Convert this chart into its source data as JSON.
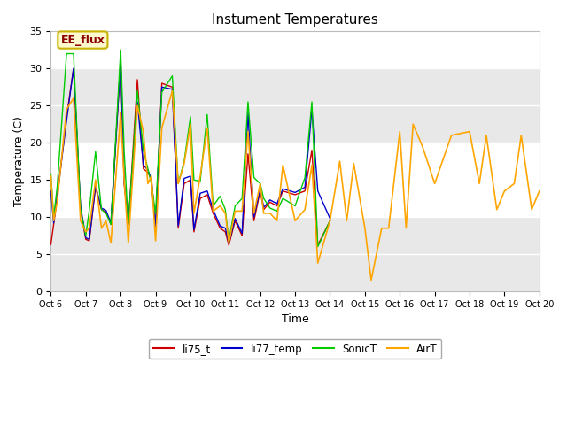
{
  "title": "Instument Temperatures",
  "xlabel": "Time",
  "ylabel": "Temperature (C)",
  "ylim": [
    0,
    35
  ],
  "xlim": [
    0,
    14
  ],
  "xtick_labels": [
    "Oct 6",
    "Oct 7",
    "Oct 8",
    "Oct 9",
    "Oct 10",
    "Oct 11",
    "Oct 12",
    "Oct 13",
    "Oct 14",
    "Oct 15",
    "Oct 16",
    "Oct 17",
    "Oct 18",
    "Oct 19",
    "Oct 20"
  ],
  "annotation_text": "EE_flux",
  "annotation_color": "#8B0000",
  "annotation_bg": "#FFFACD",
  "annotation_border": "#C8B400",
  "fig_bg": "#FFFFFF",
  "plot_bg": "#FFFFFF",
  "band_color": "#E8E8E8",
  "series_colors": {
    "li75_t": "#CC0000",
    "li77_temp": "#0000CC",
    "SonicT": "#00CC00",
    "AirT": "#FFA500"
  },
  "x_indices": [
    0,
    0.08,
    0.18,
    0.45,
    0.65,
    0.85,
    1.0,
    1.1,
    1.28,
    1.45,
    1.58,
    1.72,
    2.0,
    2.1,
    2.22,
    2.48,
    2.65,
    2.78,
    2.88,
    3.0,
    3.18,
    3.48,
    3.65,
    3.82,
    4.0,
    4.1,
    4.28,
    4.48,
    4.65,
    4.85,
    5.0,
    5.1,
    5.28,
    5.48,
    5.65,
    5.82,
    6.0,
    6.1,
    6.28,
    6.48,
    6.65,
    7.0,
    7.28,
    7.48,
    7.65,
    8.0
  ],
  "li75_t": [
    6.3,
    9.0,
    12.5,
    23.5,
    30.0,
    11.0,
    7.0,
    6.8,
    14.0,
    11.0,
    10.7,
    9.0,
    31.0,
    14.5,
    9.0,
    28.5,
    16.5,
    16.0,
    15.0,
    8.5,
    28.0,
    27.5,
    8.5,
    14.5,
    15.0,
    8.0,
    12.5,
    13.0,
    10.5,
    8.5,
    8.0,
    6.2,
    9.5,
    7.5,
    18.5,
    9.5,
    13.5,
    11.0,
    12.0,
    11.5,
    13.5,
    13.0,
    13.5,
    19.0,
    6.2,
    9.5
  ],
  "li77_temp": [
    13.5,
    9.2,
    12.8,
    23.0,
    30.0,
    11.5,
    7.2,
    7.0,
    14.2,
    11.2,
    10.9,
    9.2,
    31.0,
    14.8,
    9.2,
    25.5,
    17.0,
    16.3,
    15.2,
    8.8,
    27.5,
    27.2,
    8.8,
    15.2,
    15.5,
    8.3,
    13.2,
    13.5,
    11.0,
    8.8,
    8.5,
    6.5,
    9.8,
    7.8,
    24.0,
    10.0,
    13.8,
    11.3,
    12.3,
    11.8,
    13.8,
    13.3,
    14.0,
    24.5,
    13.5,
    9.8
  ],
  "SonicT": [
    15.8,
    10.0,
    14.0,
    32.0,
    32.0,
    11.0,
    7.5,
    10.9,
    18.8,
    11.0,
    10.5,
    9.0,
    32.5,
    18.8,
    9.0,
    27.0,
    19.0,
    16.5,
    14.5,
    10.5,
    26.8,
    29.0,
    14.5,
    17.5,
    23.5,
    15.0,
    14.8,
    23.8,
    11.5,
    12.8,
    11.0,
    6.8,
    11.5,
    12.5,
    25.5,
    15.3,
    14.5,
    12.5,
    11.2,
    10.8,
    12.5,
    11.5,
    15.3,
    25.5,
    6.0,
    9.5
  ],
  "AirT_x": [
    0,
    0.08,
    0.18,
    0.45,
    0.65,
    0.85,
    1.0,
    1.1,
    1.28,
    1.45,
    1.58,
    1.72,
    2.0,
    2.1,
    2.22,
    2.48,
    2.65,
    2.78,
    2.88,
    3.0,
    3.18,
    3.48,
    3.65,
    3.82,
    4.0,
    4.1,
    4.28,
    4.48,
    4.65,
    4.85,
    5.0,
    5.1,
    5.28,
    5.48,
    5.65,
    5.82,
    6.0,
    6.1,
    6.28,
    6.48,
    6.65,
    7.0,
    7.28,
    7.48,
    7.65,
    8.0,
    8.28,
    8.48,
    8.68,
    9.0,
    9.18,
    9.48,
    9.68,
    10.0,
    10.18,
    10.38,
    10.65,
    11.0,
    11.48,
    12.0,
    12.28,
    12.48,
    12.78,
    13.0,
    13.28,
    13.48,
    13.78,
    14.0
  ],
  "AirT": [
    15.5,
    9.5,
    12.0,
    24.5,
    26.0,
    9.5,
    8.0,
    8.5,
    15.0,
    8.5,
    9.5,
    6.5,
    24.0,
    15.0,
    6.5,
    25.0,
    21.5,
    14.5,
    15.5,
    6.8,
    22.0,
    27.0,
    14.5,
    17.2,
    22.5,
    10.5,
    15.5,
    22.0,
    10.8,
    11.5,
    10.5,
    6.5,
    10.8,
    10.8,
    21.5,
    10.5,
    14.5,
    10.5,
    10.5,
    9.5,
    17.0,
    9.5,
    11.0,
    17.0,
    3.8,
    9.5,
    17.5,
    9.5,
    17.2,
    8.5,
    1.5,
    8.5,
    8.5,
    21.5,
    8.5,
    22.5,
    19.5,
    14.5,
    21.0,
    21.5,
    14.5,
    21.0,
    11.0,
    13.5,
    14.5,
    21.0,
    11.0,
    13.5
  ]
}
